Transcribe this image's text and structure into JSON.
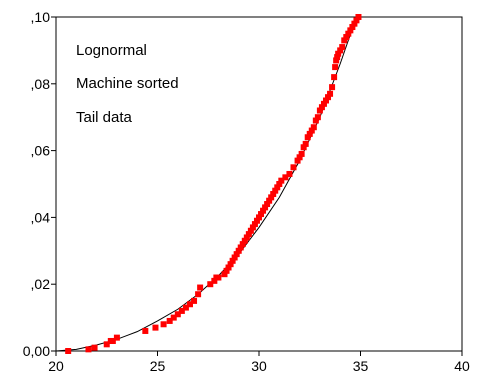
{
  "chart_data": {
    "type": "scatter",
    "title": "",
    "xlabel": "",
    "ylabel": "",
    "xlim": [
      20,
      40
    ],
    "ylim": [
      0,
      0.1
    ],
    "x_ticks": [
      {
        "value": 20,
        "label": "20"
      },
      {
        "value": 25,
        "label": "25"
      },
      {
        "value": 30,
        "label": "30"
      },
      {
        "value": 35,
        "label": "35"
      },
      {
        "value": 40,
        "label": "40"
      }
    ],
    "y_ticks": [
      {
        "value": 0.0,
        "label": "0,00"
      },
      {
        "value": 0.02,
        "label": ",02"
      },
      {
        "value": 0.04,
        "label": ",04"
      },
      {
        "value": 0.06,
        "label": ",06"
      },
      {
        "value": 0.08,
        "label": ",08"
      },
      {
        "value": 0.1,
        "label": ",10"
      }
    ],
    "grid": false,
    "annotations": [
      "Lognormal",
      "Machine sorted",
      "Tail data"
    ],
    "colors": {
      "points": "#ff0000",
      "curve": "#000000",
      "axes": "#000000"
    },
    "fitted_curve": {
      "x": [
        20.0,
        21.0,
        22.0,
        23.0,
        24.0,
        25.0,
        26.0,
        27.0,
        28.0,
        29.0,
        30.0,
        31.0,
        32.0,
        33.0,
        34.0,
        34.8
      ],
      "y": [
        0.0,
        0.0005,
        0.0018,
        0.0035,
        0.0058,
        0.009,
        0.0125,
        0.017,
        0.0225,
        0.029,
        0.037,
        0.046,
        0.057,
        0.07,
        0.086,
        0.1
      ]
    },
    "series": [
      {
        "x": [
          20.6,
          21.6,
          21.9,
          22.5,
          22.7,
          22.8,
          23.0,
          24.4,
          24.9,
          25.3,
          25.6,
          25.8,
          26.0,
          26.2,
          26.4,
          26.6,
          26.8,
          27.0,
          27.1,
          27.6,
          27.8,
          27.9,
          28.0,
          28.3,
          28.4,
          28.5,
          28.6,
          28.7,
          28.8,
          28.9,
          29.0,
          29.1,
          29.2,
          29.3,
          29.4,
          29.5,
          29.6,
          29.7,
          29.8,
          29.9,
          30.0,
          30.1,
          30.2,
          30.3,
          30.4,
          30.5,
          30.6,
          30.7,
          30.8,
          30.9,
          31.0,
          31.1,
          31.3,
          31.5,
          31.7,
          31.9,
          32.0,
          32.1,
          32.2,
          32.3,
          32.4,
          32.5,
          32.6,
          32.7,
          32.8,
          32.9,
          33.0,
          33.1,
          33.2,
          33.3,
          33.4,
          33.5,
          33.6,
          33.7,
          33.75,
          33.8,
          33.85,
          33.9,
          34.0,
          34.1,
          34.2,
          34.3,
          34.4,
          34.5,
          34.6,
          34.7,
          34.8,
          34.9
        ],
        "y": [
          0.0,
          0.0005,
          0.001,
          0.002,
          0.003,
          0.003,
          0.004,
          0.006,
          0.007,
          0.008,
          0.009,
          0.01,
          0.011,
          0.012,
          0.013,
          0.014,
          0.015,
          0.017,
          0.019,
          0.02,
          0.021,
          0.022,
          0.022,
          0.023,
          0.024,
          0.025,
          0.026,
          0.027,
          0.028,
          0.029,
          0.03,
          0.031,
          0.032,
          0.033,
          0.034,
          0.035,
          0.036,
          0.037,
          0.038,
          0.039,
          0.04,
          0.041,
          0.042,
          0.043,
          0.044,
          0.045,
          0.046,
          0.047,
          0.048,
          0.049,
          0.05,
          0.051,
          0.052,
          0.053,
          0.055,
          0.057,
          0.058,
          0.059,
          0.061,
          0.062,
          0.064,
          0.065,
          0.066,
          0.067,
          0.069,
          0.07,
          0.072,
          0.073,
          0.074,
          0.075,
          0.076,
          0.077,
          0.079,
          0.082,
          0.085,
          0.087,
          0.088,
          0.089,
          0.09,
          0.091,
          0.093,
          0.094,
          0.095,
          0.096,
          0.097,
          0.098,
          0.099,
          0.1
        ]
      }
    ]
  }
}
